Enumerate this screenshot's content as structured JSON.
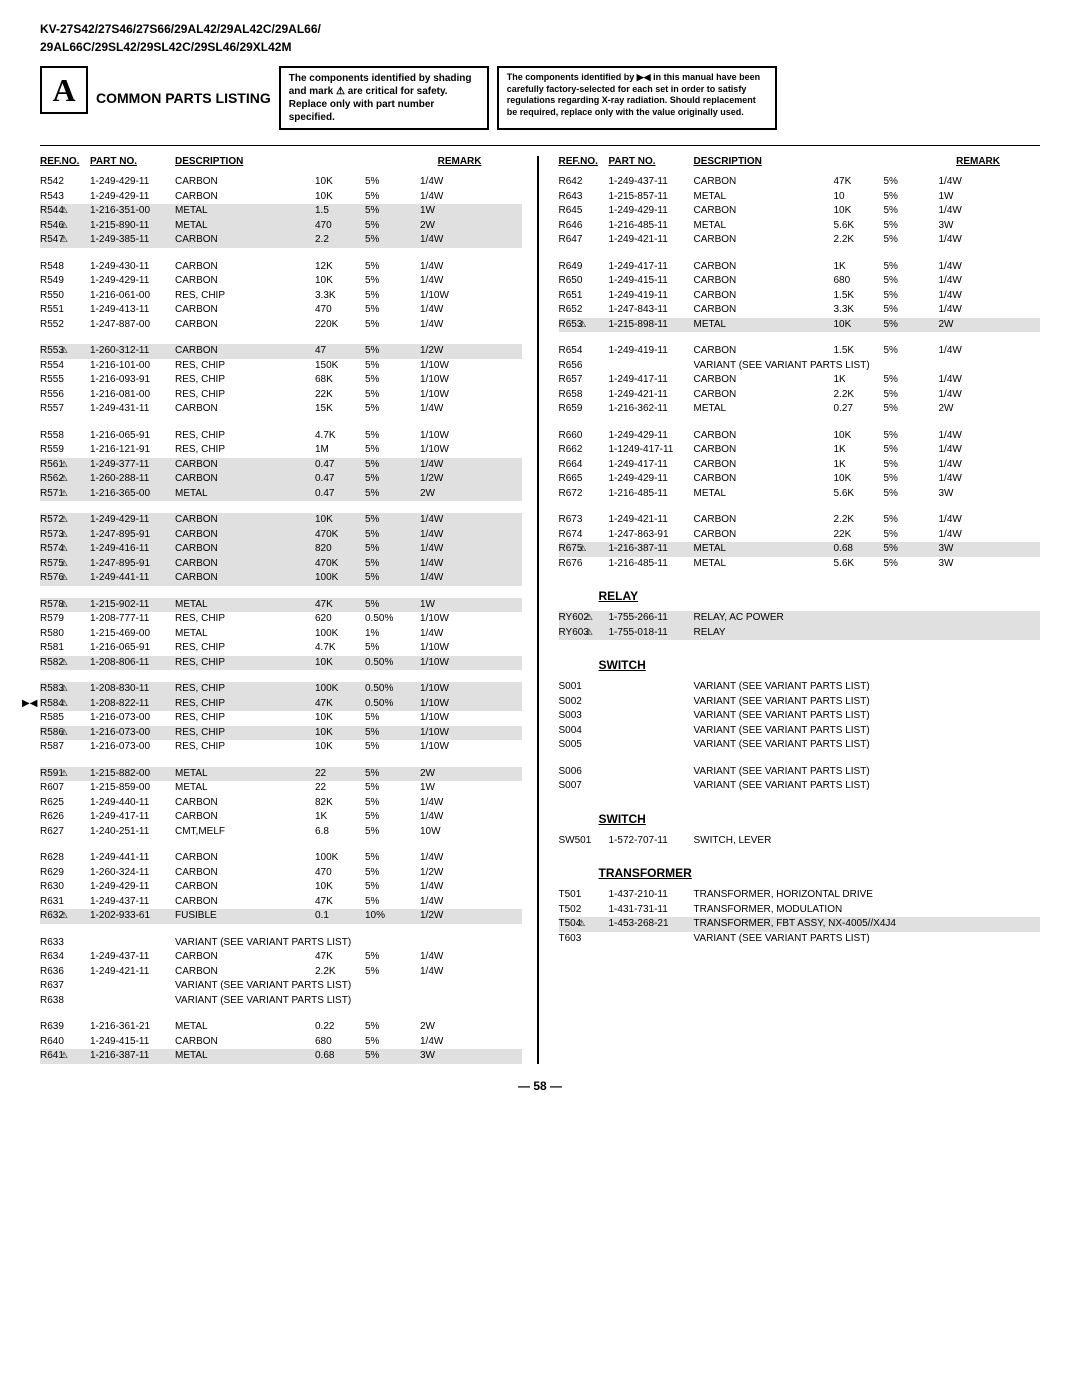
{
  "header": {
    "models": "KV-27S42/27S46/27S66/29AL42/29AL42C/29AL66/",
    "models2": "29AL66C/29SL42/29SL42C/29SL46/29XL42M",
    "a": "A",
    "title": "COMMON PARTS LISTING",
    "box1": "The components identified by shading and mark ⚠ are critical for safety. Replace only with part number specified.",
    "box2a": "The components identified by ",
    "box2b": " in this manual have been carefully factory-selected for each set in order to satisfy regulations regarding X-ray radiation. Should replacement be required, replace only with the value originally used."
  },
  "cols": {
    "ref": "REF.NO.",
    "part": "PART NO.",
    "desc": "DESCRIPTION",
    "remark": "REMARK"
  },
  "sections": {
    "relay": "RELAY",
    "switch": "SWITCH",
    "transformer": "TRANSFORMER"
  },
  "left": [
    {
      "r": "R542",
      "p": "1-249-429-11",
      "d": "CARBON",
      "v1": "10K",
      "v2": "5%",
      "v3": "1/4W"
    },
    {
      "r": "R543",
      "p": "1-249-429-11",
      "d": "CARBON",
      "v1": "10K",
      "v2": "5%",
      "v3": "1/4W"
    },
    {
      "r": "R544",
      "p": "1-216-351-00",
      "d": "METAL",
      "v1": "1.5",
      "v2": "5%",
      "v3": "1W",
      "s": true,
      "t": true
    },
    {
      "r": "R546",
      "p": "1-215-890-11",
      "d": "METAL",
      "v1": "470",
      "v2": "5%",
      "v3": "2W",
      "s": true,
      "t": true
    },
    {
      "r": "R547",
      "p": "1-249-385-11",
      "d": "CARBON",
      "v1": "2.2",
      "v2": "5%",
      "v3": "1/4W",
      "s": true,
      "t": true
    },
    {
      "gap": true
    },
    {
      "r": "R548",
      "p": "1-249-430-11",
      "d": "CARBON",
      "v1": "12K",
      "v2": "5%",
      "v3": "1/4W"
    },
    {
      "r": "R549",
      "p": "1-249-429-11",
      "d": "CARBON",
      "v1": "10K",
      "v2": "5%",
      "v3": "1/4W"
    },
    {
      "r": "R550",
      "p": "1-216-061-00",
      "d": "RES, CHIP",
      "v1": "3.3K",
      "v2": "5%",
      "v3": "1/10W"
    },
    {
      "r": "R551",
      "p": "1-249-413-11",
      "d": "CARBON",
      "v1": "470",
      "v2": "5%",
      "v3": "1/4W"
    },
    {
      "r": "R552",
      "p": "1-247-887-00",
      "d": "CARBON",
      "v1": "220K",
      "v2": "5%",
      "v3": "1/4W"
    },
    {
      "gap": true
    },
    {
      "r": "R553",
      "p": "1-260-312-11",
      "d": "CARBON",
      "v1": "47",
      "v2": "5%",
      "v3": "1/2W",
      "s": true,
      "t": true
    },
    {
      "r": "R554",
      "p": "1-216-101-00",
      "d": "RES, CHIP",
      "v1": "150K",
      "v2": "5%",
      "v3": "1/10W"
    },
    {
      "r": "R555",
      "p": "1-216-093-91",
      "d": "RES, CHIP",
      "v1": "68K",
      "v2": "5%",
      "v3": "1/10W"
    },
    {
      "r": "R556",
      "p": "1-216-081-00",
      "d": "RES, CHIP",
      "v1": "22K",
      "v2": "5%",
      "v3": "1/10W"
    },
    {
      "r": "R557",
      "p": "1-249-431-11",
      "d": "CARBON",
      "v1": "15K",
      "v2": "5%",
      "v3": "1/4W"
    },
    {
      "gap": true
    },
    {
      "r": "R558",
      "p": "1-216-065-91",
      "d": "RES, CHIP",
      "v1": "4.7K",
      "v2": "5%",
      "v3": "1/10W"
    },
    {
      "r": "R559",
      "p": "1-216-121-91",
      "d": "RES, CHIP",
      "v1": "1M",
      "v2": "5%",
      "v3": "1/10W"
    },
    {
      "r": "R561",
      "p": "1-249-377-11",
      "d": "CARBON",
      "v1": "0.47",
      "v2": "5%",
      "v3": "1/4W",
      "s": true,
      "t": true
    },
    {
      "r": "R562",
      "p": "1-260-288-11",
      "d": "CARBON",
      "v1": "0.47",
      "v2": "5%",
      "v3": "1/2W",
      "s": true,
      "t": true
    },
    {
      "r": "R571",
      "p": "1-216-365-00",
      "d": "METAL",
      "v1": "0.47",
      "v2": "5%",
      "v3": "2W",
      "s": true,
      "t": true
    },
    {
      "gap": true
    },
    {
      "r": "R572",
      "p": "1-249-429-11",
      "d": "CARBON",
      "v1": "10K",
      "v2": "5%",
      "v3": "1/4W",
      "s": true,
      "t": true
    },
    {
      "r": "R573",
      "p": "1-247-895-91",
      "d": "CARBON",
      "v1": "470K",
      "v2": "5%",
      "v3": "1/4W",
      "s": true,
      "t": true
    },
    {
      "r": "R574",
      "p": "1-249-416-11",
      "d": "CARBON",
      "v1": "820",
      "v2": "5%",
      "v3": "1/4W",
      "s": true,
      "t": true
    },
    {
      "r": "R575",
      "p": "1-247-895-91",
      "d": "CARBON",
      "v1": "470K",
      "v2": "5%",
      "v3": "1/4W",
      "s": true,
      "t": true
    },
    {
      "r": "R576",
      "p": "1-249-441-11",
      "d": "CARBON",
      "v1": "100K",
      "v2": "5%",
      "v3": "1/4W",
      "s": true,
      "t": true
    },
    {
      "gap": true
    },
    {
      "r": "R578",
      "p": "1-215-902-11",
      "d": "METAL",
      "v1": "47K",
      "v2": "5%",
      "v3": "1W",
      "s": true,
      "t": true
    },
    {
      "r": "R579",
      "p": "1-208-777-11",
      "d": "RES, CHIP",
      "v1": "620",
      "v2": "0.50%",
      "v3": "1/10W"
    },
    {
      "r": "R580",
      "p": "1-215-469-00",
      "d": "METAL",
      "v1": "100K",
      "v2": "1%",
      "v3": "1/4W"
    },
    {
      "r": "R581",
      "p": "1-216-065-91",
      "d": "RES, CHIP",
      "v1": "4.7K",
      "v2": "5%",
      "v3": "1/10W"
    },
    {
      "r": "R582",
      "p": "1-208-806-11",
      "d": "RES, CHIP",
      "v1": "10K",
      "v2": "0.50%",
      "v3": "1/10W",
      "s": true,
      "t": true
    },
    {
      "gap": true
    },
    {
      "r": "R583",
      "p": "1-208-830-11",
      "d": "RES, CHIP",
      "v1": "100K",
      "v2": "0.50%",
      "v3": "1/10W",
      "s": true,
      "t": true
    },
    {
      "r": "R584",
      "p": "1-208-822-11",
      "d": "RES, CHIP",
      "v1": "47K",
      "v2": "0.50%",
      "v3": "1/10W",
      "s": true,
      "t": true,
      "x": true
    },
    {
      "r": "R585",
      "p": "1-216-073-00",
      "d": "RES, CHIP",
      "v1": "10K",
      "v2": "5%",
      "v3": "1/10W"
    },
    {
      "r": "R586",
      "p": "1-216-073-00",
      "d": "RES, CHIP",
      "v1": "10K",
      "v2": "5%",
      "v3": "1/10W",
      "s": true,
      "t": true
    },
    {
      "r": "R587",
      "p": "1-216-073-00",
      "d": "RES, CHIP",
      "v1": "10K",
      "v2": "5%",
      "v3": "1/10W"
    },
    {
      "gap": true
    },
    {
      "r": "R591",
      "p": "1-215-882-00",
      "d": "METAL",
      "v1": "22",
      "v2": "5%",
      "v3": "2W",
      "s": true,
      "t": true
    },
    {
      "r": "R607",
      "p": "1-215-859-00",
      "d": "METAL",
      "v1": "22",
      "v2": "5%",
      "v3": "1W"
    },
    {
      "r": "R625",
      "p": "1-249-440-11",
      "d": "CARBON",
      "v1": "82K",
      "v2": "5%",
      "v3": "1/4W"
    },
    {
      "r": "R626",
      "p": "1-249-417-11",
      "d": "CARBON",
      "v1": "1K",
      "v2": "5%",
      "v3": "1/4W"
    },
    {
      "r": "R627",
      "p": "1-240-251-11",
      "d": "CMT,MELF",
      "v1": "6.8",
      "v2": "5%",
      "v3": "10W"
    },
    {
      "gap": true
    },
    {
      "r": "R628",
      "p": "1-249-441-11",
      "d": "CARBON",
      "v1": "100K",
      "v2": "5%",
      "v3": "1/4W"
    },
    {
      "r": "R629",
      "p": "1-260-324-11",
      "d": "CARBON",
      "v1": "470",
      "v2": "5%",
      "v3": "1/2W"
    },
    {
      "r": "R630",
      "p": "1-249-429-11",
      "d": "CARBON",
      "v1": "10K",
      "v2": "5%",
      "v3": "1/4W"
    },
    {
      "r": "R631",
      "p": "1-249-437-11",
      "d": "CARBON",
      "v1": "47K",
      "v2": "5%",
      "v3": "1/4W"
    },
    {
      "r": "R632",
      "p": "1-202-933-61",
      "d": "FUSIBLE",
      "v1": "0.1",
      "v2": "10%",
      "v3": "1/2W",
      "s": true,
      "t": true
    },
    {
      "gap": true
    },
    {
      "r": "R633",
      "p": "",
      "d": "VARIANT (SEE VARIANT PARTS LIST)",
      "variant": true
    },
    {
      "r": "R634",
      "p": "1-249-437-11",
      "d": "CARBON",
      "v1": "47K",
      "v2": "5%",
      "v3": "1/4W"
    },
    {
      "r": "R636",
      "p": "1-249-421-11",
      "d": "CARBON",
      "v1": "2.2K",
      "v2": "5%",
      "v3": "1/4W"
    },
    {
      "r": "R637",
      "p": "",
      "d": "VARIANT (SEE VARIANT PARTS LIST)",
      "variant": true
    },
    {
      "r": "R638",
      "p": "",
      "d": "VARIANT (SEE VARIANT PARTS LIST)",
      "variant": true
    },
    {
      "gap": true
    },
    {
      "r": "R639",
      "p": "1-216-361-21",
      "d": "METAL",
      "v1": "0.22",
      "v2": "5%",
      "v3": "2W"
    },
    {
      "r": "R640",
      "p": "1-249-415-11",
      "d": "CARBON",
      "v1": "680",
      "v2": "5%",
      "v3": "1/4W"
    },
    {
      "r": "R641",
      "p": "1-216-387-11",
      "d": "METAL",
      "v1": "0.68",
      "v2": "5%",
      "v3": "3W",
      "s": true,
      "t": true
    }
  ],
  "right": [
    {
      "r": "R642",
      "p": "1-249-437-11",
      "d": "CARBON",
      "v1": "47K",
      "v2": "5%",
      "v3": "1/4W"
    },
    {
      "r": "R643",
      "p": "1-215-857-11",
      "d": "METAL",
      "v1": "10",
      "v2": "5%",
      "v3": "1W"
    },
    {
      "r": "R645",
      "p": "1-249-429-11",
      "d": "CARBON",
      "v1": "10K",
      "v2": "5%",
      "v3": "1/4W"
    },
    {
      "r": "R646",
      "p": "1-216-485-11",
      "d": "METAL",
      "v1": "5.6K",
      "v2": "5%",
      "v3": "3W"
    },
    {
      "r": "R647",
      "p": "1-249-421-11",
      "d": "CARBON",
      "v1": "2.2K",
      "v2": "5%",
      "v3": "1/4W"
    },
    {
      "gap": true
    },
    {
      "r": "R649",
      "p": "1-249-417-11",
      "d": "CARBON",
      "v1": "1K",
      "v2": "5%",
      "v3": "1/4W"
    },
    {
      "r": "R650",
      "p": "1-249-415-11",
      "d": "CARBON",
      "v1": "680",
      "v2": "5%",
      "v3": "1/4W"
    },
    {
      "r": "R651",
      "p": "1-249-419-11",
      "d": "CARBON",
      "v1": "1.5K",
      "v2": "5%",
      "v3": "1/4W"
    },
    {
      "r": "R652",
      "p": "1-247-843-11",
      "d": "CARBON",
      "v1": "3.3K",
      "v2": "5%",
      "v3": "1/4W"
    },
    {
      "r": "R653",
      "p": "1-215-898-11",
      "d": "METAL",
      "v1": "10K",
      "v2": "5%",
      "v3": "2W",
      "s": true,
      "t": true
    },
    {
      "gap": true
    },
    {
      "r": "R654",
      "p": "1-249-419-11",
      "d": "CARBON",
      "v1": "1.5K",
      "v2": "5%",
      "v3": "1/4W"
    },
    {
      "r": "R656",
      "p": "",
      "d": "VARIANT (SEE VARIANT PARTS LIST)",
      "variant": true
    },
    {
      "r": "R657",
      "p": "1-249-417-11",
      "d": "CARBON",
      "v1": "1K",
      "v2": "5%",
      "v3": "1/4W"
    },
    {
      "r": "R658",
      "p": "1-249-421-11",
      "d": "CARBON",
      "v1": "2.2K",
      "v2": "5%",
      "v3": "1/4W"
    },
    {
      "r": "R659",
      "p": "1-216-362-11",
      "d": "METAL",
      "v1": "0.27",
      "v2": "5%",
      "v3": "2W"
    },
    {
      "gap": true
    },
    {
      "r": "R660",
      "p": "1-249-429-11",
      "d": "CARBON",
      "v1": "10K",
      "v2": "5%",
      "v3": "1/4W"
    },
    {
      "r": "R662",
      "p": "1-1249-417-11",
      "d": "CARBON",
      "v1": "1K",
      "v2": "5%",
      "v3": "1/4W"
    },
    {
      "r": "R664",
      "p": "1-249-417-11",
      "d": "CARBON",
      "v1": "1K",
      "v2": "5%",
      "v3": "1/4W"
    },
    {
      "r": "R665",
      "p": "1-249-429-11",
      "d": "CARBON",
      "v1": "10K",
      "v2": "5%",
      "v3": "1/4W"
    },
    {
      "r": "R672",
      "p": "1-216-485-11",
      "d": "METAL",
      "v1": "5.6K",
      "v2": "5%",
      "v3": "3W"
    },
    {
      "gap": true
    },
    {
      "r": "R673",
      "p": "1-249-421-11",
      "d": "CARBON",
      "v1": "2.2K",
      "v2": "5%",
      "v3": "1/4W"
    },
    {
      "r": "R674",
      "p": "1-247-863-91",
      "d": "CARBON",
      "v1": "22K",
      "v2": "5%",
      "v3": "1/4W"
    },
    {
      "r": "R675",
      "p": "1-216-387-11",
      "d": "METAL",
      "v1": "0.68",
      "v2": "5%",
      "v3": "3W",
      "s": true,
      "t": true
    },
    {
      "r": "R676",
      "p": "1-216-485-11",
      "d": "METAL",
      "v1": "5.6K",
      "v2": "5%",
      "v3": "3W"
    }
  ],
  "relay": [
    {
      "r": "RY602",
      "p": "1-755-266-11",
      "d": "RELAY, AC POWER",
      "s": true,
      "t": true
    },
    {
      "r": "RY603",
      "p": "1-755-018-11",
      "d": "RELAY",
      "s": true,
      "t": true
    }
  ],
  "switch1": [
    {
      "r": "S001",
      "d": "VARIANT (SEE VARIANT PARTS LIST)"
    },
    {
      "r": "S002",
      "d": "VARIANT (SEE VARIANT PARTS LIST)"
    },
    {
      "r": "S003",
      "d": "VARIANT (SEE VARIANT PARTS LIST)"
    },
    {
      "r": "S004",
      "d": "VARIANT (SEE VARIANT PARTS LIST)"
    },
    {
      "r": "S005",
      "d": "VARIANT (SEE VARIANT PARTS LIST)"
    },
    {
      "gap": true
    },
    {
      "r": "S006",
      "d": "VARIANT (SEE VARIANT PARTS LIST)"
    },
    {
      "r": "S007",
      "d": "VARIANT (SEE VARIANT PARTS LIST)"
    }
  ],
  "switch2": [
    {
      "r": "SW501",
      "p": "1-572-707-11",
      "d": "SWITCH, LEVER"
    }
  ],
  "transformer": [
    {
      "r": "T501",
      "p": "1-437-210-11",
      "d": "TRANSFORMER, HORIZONTAL DRIVE"
    },
    {
      "r": "T502",
      "p": "1-431-731-11",
      "d": "TRANSFORMER, MODULATION"
    },
    {
      "r": "T504",
      "p": "1-453-268-21",
      "d": "TRANSFORMER, FBT ASSY, NX-4005//X4J4",
      "s": true,
      "t": true
    },
    {
      "r": "T603",
      "p": "",
      "d": "VARIANT (SEE VARIANT PARTS LIST)"
    }
  ],
  "page": "— 58 —"
}
